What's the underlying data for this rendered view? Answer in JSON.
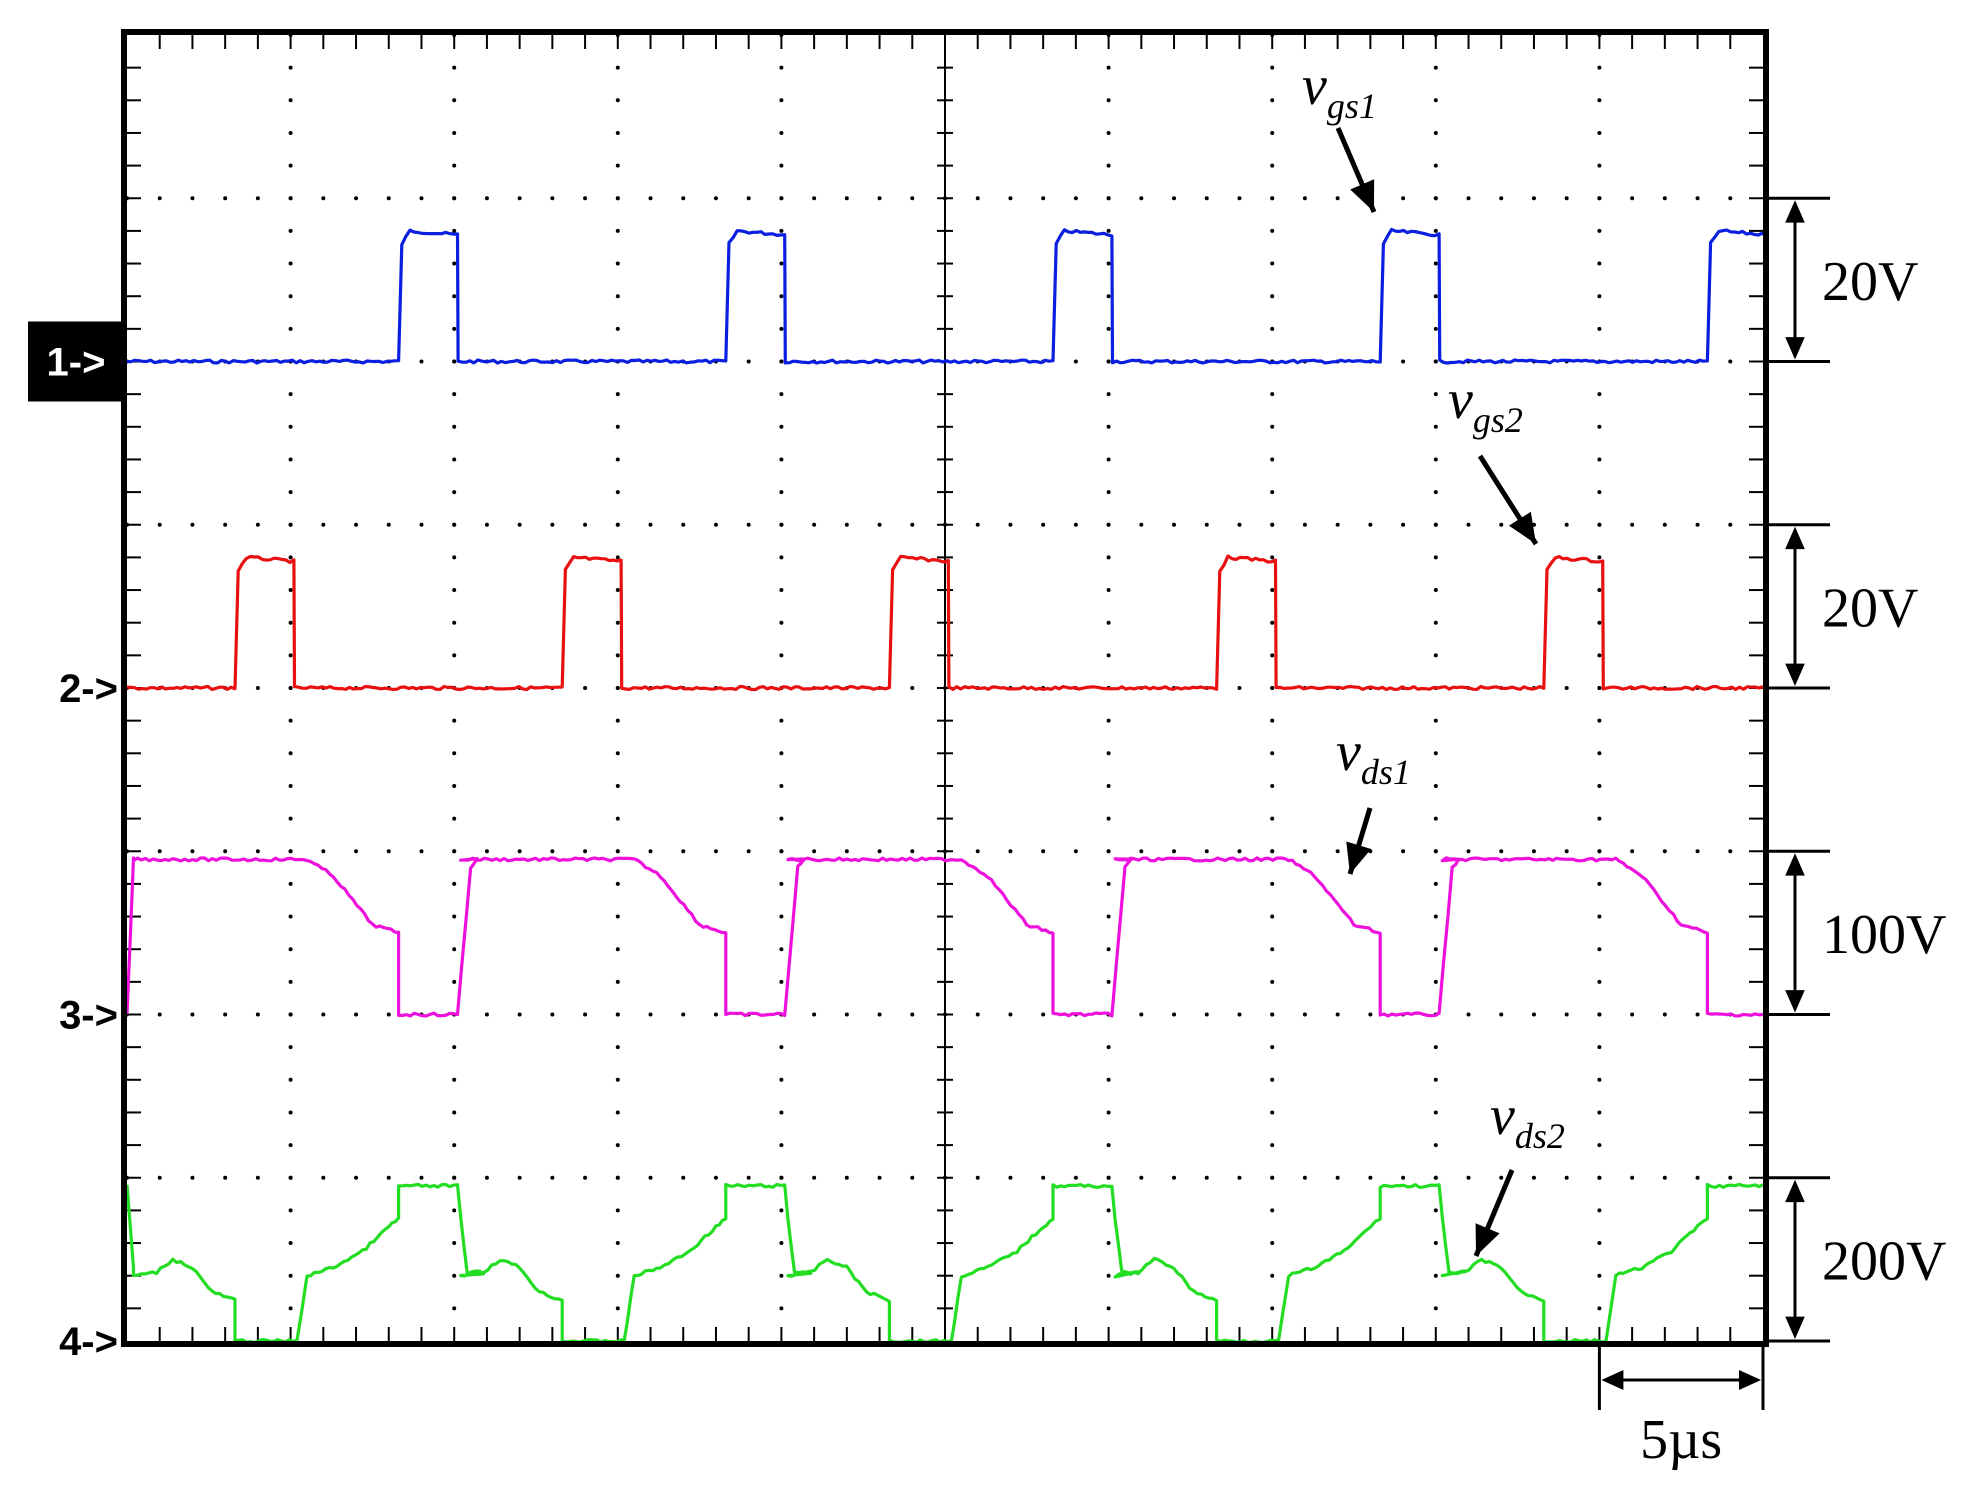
{
  "chart_data": {
    "type": "line",
    "title": "",
    "xlabel": "",
    "ylabel": "",
    "grid": true,
    "x_divisions": 10,
    "y_divisions": 8,
    "time_scale": "5µs",
    "period_us": 10,
    "x_range_us": [
      0,
      50
    ],
    "channels": [
      {
        "id": "1",
        "marker": "1->",
        "marker_style": "boxed",
        "name": "vgs1",
        "label_main": "v",
        "label_sub": "gs1",
        "scale": "20V",
        "color": "#0a1fe0",
        "ground_div": 6,
        "low_div": 0,
        "high_div": 0.8,
        "pulse_starts_us": [
          8.3,
          18.3,
          28.3,
          38.3,
          48.3
        ],
        "pulse_width_us": 1.8
      },
      {
        "id": "2",
        "marker": "2->",
        "marker_style": "plain",
        "name": "vgs2",
        "label_main": "v",
        "label_sub": "gs2",
        "scale": "20V",
        "color": "#e81010",
        "ground_div": 4,
        "low_div": 0,
        "high_div": 0.8,
        "pulse_starts_us": [
          3.3,
          13.3,
          23.3,
          33.3,
          43.3
        ],
        "pulse_width_us": 1.8
      },
      {
        "id": "3",
        "marker": "3->",
        "marker_style": "plain",
        "name": "vds1",
        "label_main": "v",
        "label_sub": "ds1",
        "scale": "100V",
        "color": "#ee10dd",
        "ground_div": 2,
        "period_shape_us": [
          [
            0.2,
            0.95
          ],
          [
            5.5,
            0.95
          ],
          [
            6.3,
            0.85
          ],
          [
            7.5,
            0.55
          ],
          [
            8.3,
            0.5
          ],
          [
            8.3,
            0
          ],
          [
            10.1,
            0
          ],
          [
            10.5,
            0.9
          ],
          [
            10.7,
            0.95
          ]
        ],
        "start_shape_us": [
          [
            0,
            0
          ],
          [
            0.2,
            0.95
          ]
        ]
      },
      {
        "id": "4",
        "marker": "4->",
        "marker_style": "plain",
        "name": "vds2",
        "label_main": "v",
        "label_sub": "ds2",
        "scale": "200V",
        "color": "#22dd22",
        "ground_div": 0,
        "period_shape_us": [
          [
            0.2,
            0.4
          ],
          [
            0.9,
            0.42
          ],
          [
            1.4,
            0.5
          ],
          [
            2.0,
            0.45
          ],
          [
            2.6,
            0.3
          ],
          [
            3.3,
            0.25
          ],
          [
            3.3,
            0
          ],
          [
            5.2,
            0
          ],
          [
            5.5,
            0.4
          ],
          [
            6.3,
            0.45
          ],
          [
            7.2,
            0.55
          ],
          [
            8.0,
            0.7
          ],
          [
            8.3,
            0.75
          ],
          [
            8.3,
            0.95
          ],
          [
            10.1,
            0.95
          ],
          [
            10.2,
            0.75
          ],
          [
            10.4,
            0.42
          ],
          [
            10.9,
            0.42
          ]
        ],
        "start_shape_us": [
          [
            0,
            0.95
          ],
          [
            0.2,
            0.45
          ]
        ]
      }
    ]
  }
}
